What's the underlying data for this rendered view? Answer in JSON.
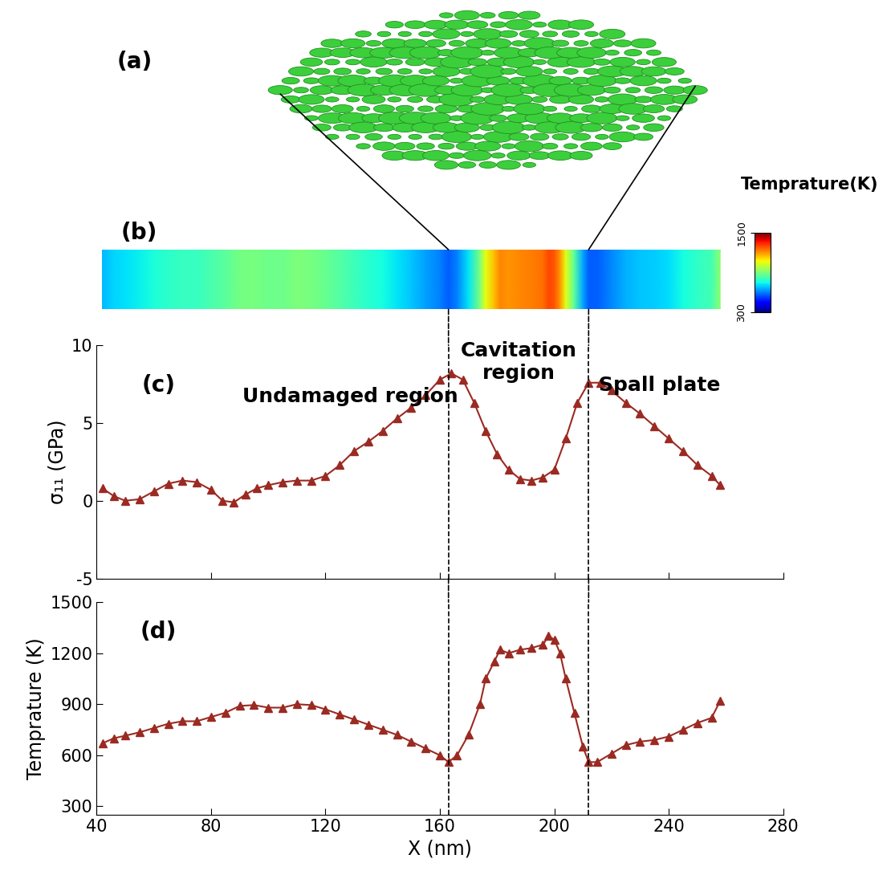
{
  "chart_data": [
    {
      "type": "line",
      "panel": "(c)",
      "ylabel": "σ₁₁ (GPa)",
      "color": "#9b2a22",
      "marker": "triangle",
      "tick_labels": "y",
      "xlim": [
        40,
        280
      ],
      "xticks": [
        40,
        80,
        120,
        160,
        200,
        240,
        280
      ],
      "ylim": [
        -5,
        10
      ],
      "yticks": [
        -5,
        0,
        5,
        10
      ],
      "annotations": [
        "Undamaged region",
        "Cavitation\nregion",
        "Spall plate"
      ],
      "x": [
        42,
        46,
        50,
        55,
        60,
        65,
        70,
        75,
        80,
        84,
        88,
        92,
        96,
        100,
        105,
        110,
        115,
        120,
        125,
        130,
        135,
        140,
        145,
        150,
        155,
        160,
        164,
        168,
        172,
        176,
        180,
        184,
        188,
        192,
        196,
        200,
        204,
        208,
        212,
        216,
        220,
        225,
        230,
        235,
        240,
        245,
        250,
        255,
        258
      ],
      "values": [
        0.8,
        0.3,
        0.0,
        0.1,
        0.6,
        1.1,
        1.3,
        1.2,
        0.7,
        0.0,
        -0.1,
        0.4,
        0.8,
        1.0,
        1.2,
        1.3,
        1.3,
        1.6,
        2.3,
        3.2,
        3.8,
        4.5,
        5.3,
        6.0,
        6.8,
        7.8,
        8.2,
        7.8,
        6.3,
        4.5,
        3.0,
        2.0,
        1.4,
        1.3,
        1.5,
        2.0,
        4.0,
        6.3,
        7.6,
        7.6,
        7.1,
        6.3,
        5.6,
        4.8,
        4.0,
        3.2,
        2.3,
        1.6,
        1.0
      ]
    },
    {
      "type": "line",
      "panel": "(d)",
      "xlabel": "X (nm)",
      "ylabel": "Temprature (K)",
      "color": "#9b2a22",
      "marker": "triangle",
      "xlim": [
        40,
        280
      ],
      "xticks": [
        40,
        80,
        120,
        160,
        200,
        240,
        280
      ],
      "ylim": [
        250,
        1500
      ],
      "yticks": [
        300,
        600,
        900,
        1200,
        1500
      ],
      "x": [
        42,
        46,
        50,
        55,
        60,
        65,
        70,
        75,
        80,
        85,
        90,
        95,
        100,
        105,
        110,
        115,
        120,
        125,
        130,
        135,
        140,
        145,
        150,
        155,
        160,
        163,
        166,
        170,
        174,
        176,
        179,
        181,
        184,
        188,
        192,
        196,
        198,
        200,
        202,
        204,
        207,
        210,
        212,
        215,
        220,
        225,
        230,
        235,
        240,
        245,
        250,
        255,
        258
      ],
      "values": [
        670,
        700,
        715,
        735,
        760,
        785,
        800,
        800,
        825,
        850,
        890,
        895,
        880,
        880,
        900,
        895,
        870,
        840,
        810,
        780,
        750,
        720,
        680,
        640,
        600,
        560,
        600,
        720,
        900,
        1050,
        1150,
        1220,
        1200,
        1220,
        1230,
        1250,
        1300,
        1280,
        1200,
        1050,
        850,
        650,
        560,
        560,
        610,
        660,
        680,
        690,
        710,
        750,
        790,
        820,
        920
      ]
    }
  ],
  "region_boundaries": [
    163,
    212
  ],
  "void_render": {
    "panel": "(a)"
  },
  "temperature_map": {
    "panel": "(b)",
    "colorbar_label": "Temprature(K)",
    "colorbar_range": [
      300,
      1500
    ],
    "colorbar_ticks": [
      300,
      1500
    ]
  }
}
